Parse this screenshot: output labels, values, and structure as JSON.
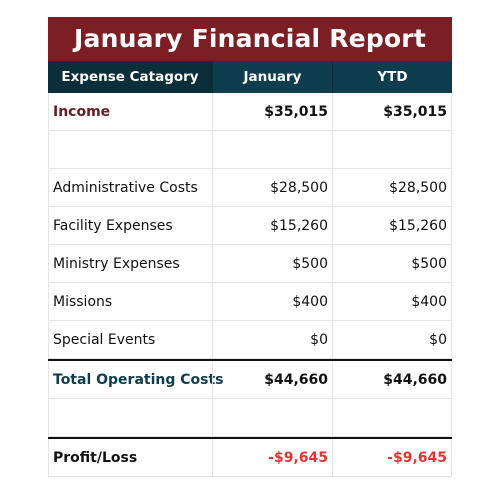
{
  "report": {
    "title": "January Financial Report",
    "columns": [
      "Expense Catagory",
      "January",
      "YTD"
    ],
    "income": {
      "label": "Income",
      "january": "$35,015",
      "ytd": "$35,015"
    },
    "expenses": [
      {
        "label": "Administrative Costs",
        "january": "$28,500",
        "ytd": "$28,500"
      },
      {
        "label": "Facility Expenses",
        "january": "$15,260",
        "ytd": "$15,260"
      },
      {
        "label": "Ministry Expenses",
        "january": "$500",
        "ytd": "$500"
      },
      {
        "label": "Missions",
        "january": "$400",
        "ytd": "$400"
      },
      {
        "label": "Special Events",
        "january": "$0",
        "ytd": "$0"
      }
    ],
    "total": {
      "label": "Total Operating Costs",
      "january": "$44,660",
      "ytd": "$44,660"
    },
    "profit": {
      "label": "Profit/Loss",
      "january": "-$9,645",
      "ytd": "-$9,645"
    }
  },
  "colors": {
    "title_bg": "#7b1f24",
    "header_bg": "#0e3d4e",
    "loss": "#e8322f"
  }
}
